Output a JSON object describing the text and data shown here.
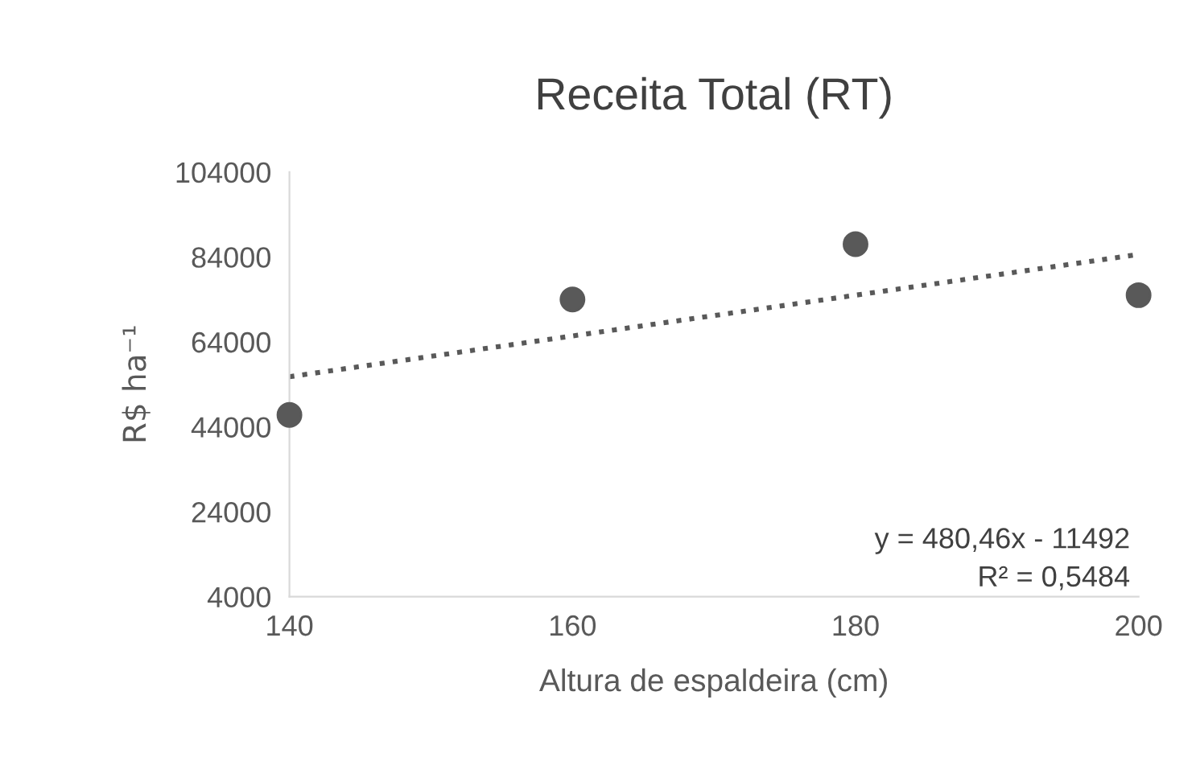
{
  "chart_data": {
    "type": "scatter",
    "title": "Receita Total (RT)",
    "xlabel": "Altura de espaldeira (cm)",
    "ylabel": "R$ ha⁻¹",
    "x": [
      140,
      160,
      180,
      200
    ],
    "series": [
      {
        "color": "#595959",
        "marker": "circle",
        "values": [
          46800,
          74000,
          87000,
          75000
        ]
      },
      {
        "type": "line",
        "color": "#595959",
        "line_style": "dotted",
        "marker": "none",
        "x": [
          140,
          200
        ],
        "values": [
          55800,
          84600
        ]
      }
    ],
    "xlim": [
      140,
      200
    ],
    "xticks": [
      140,
      160,
      180,
      200
    ],
    "ylim": [
      4000,
      104000
    ],
    "yticks": [
      4000,
      24000,
      44000,
      64000,
      84000,
      104000
    ],
    "grid": false,
    "legend": false,
    "annotations": [
      "y = 480,46x - 11492",
      "R² = 0,5484"
    ]
  }
}
